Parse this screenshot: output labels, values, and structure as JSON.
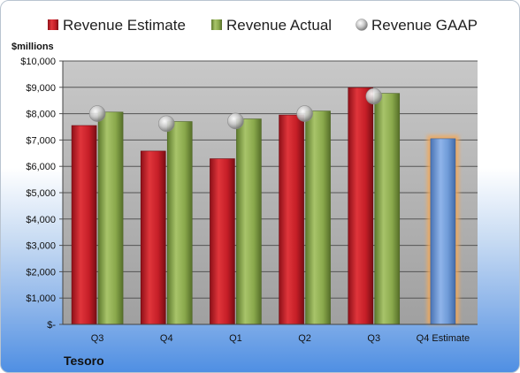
{
  "chart_data": {
    "type": "bar",
    "ylabel": "$millions",
    "company": "Tesoro",
    "categories": [
      "Q3",
      "Q4",
      "Q1",
      "Q2",
      "Q3",
      "Q4 Estimate"
    ],
    "ylim": [
      0,
      10000
    ],
    "yticks": [
      0,
      1000,
      2000,
      3000,
      4000,
      5000,
      6000,
      7000,
      8000,
      9000,
      10000
    ],
    "ytick_labels": [
      "$-",
      "$1,000",
      "$2,000",
      "$3,000",
      "$4,000",
      "$5,000",
      "$6,000",
      "$7,000",
      "$8,000",
      "$9,000",
      "$10,000"
    ],
    "grid": true,
    "legend_position": "top",
    "series": [
      {
        "name": "Revenue Estimate",
        "kind": "bar",
        "color": "#c0232b",
        "values": [
          7550,
          6580,
          6290,
          7950,
          8990,
          null
        ]
      },
      {
        "name": "Revenue Actual",
        "kind": "bar",
        "color": "#8fb04f",
        "values": [
          8060,
          7700,
          7800,
          8100,
          8770,
          null
        ]
      },
      {
        "name": "Revenue GAAP",
        "kind": "marker",
        "color": "#c8c8c8",
        "values": [
          8000,
          7620,
          7720,
          8000,
          8660,
          null
        ]
      },
      {
        "name": "Q4 Estimate",
        "kind": "bar",
        "color": "#6f9bd8",
        "highlight": "#f3a95a",
        "values": [
          null,
          null,
          null,
          null,
          null,
          7050
        ]
      }
    ]
  }
}
